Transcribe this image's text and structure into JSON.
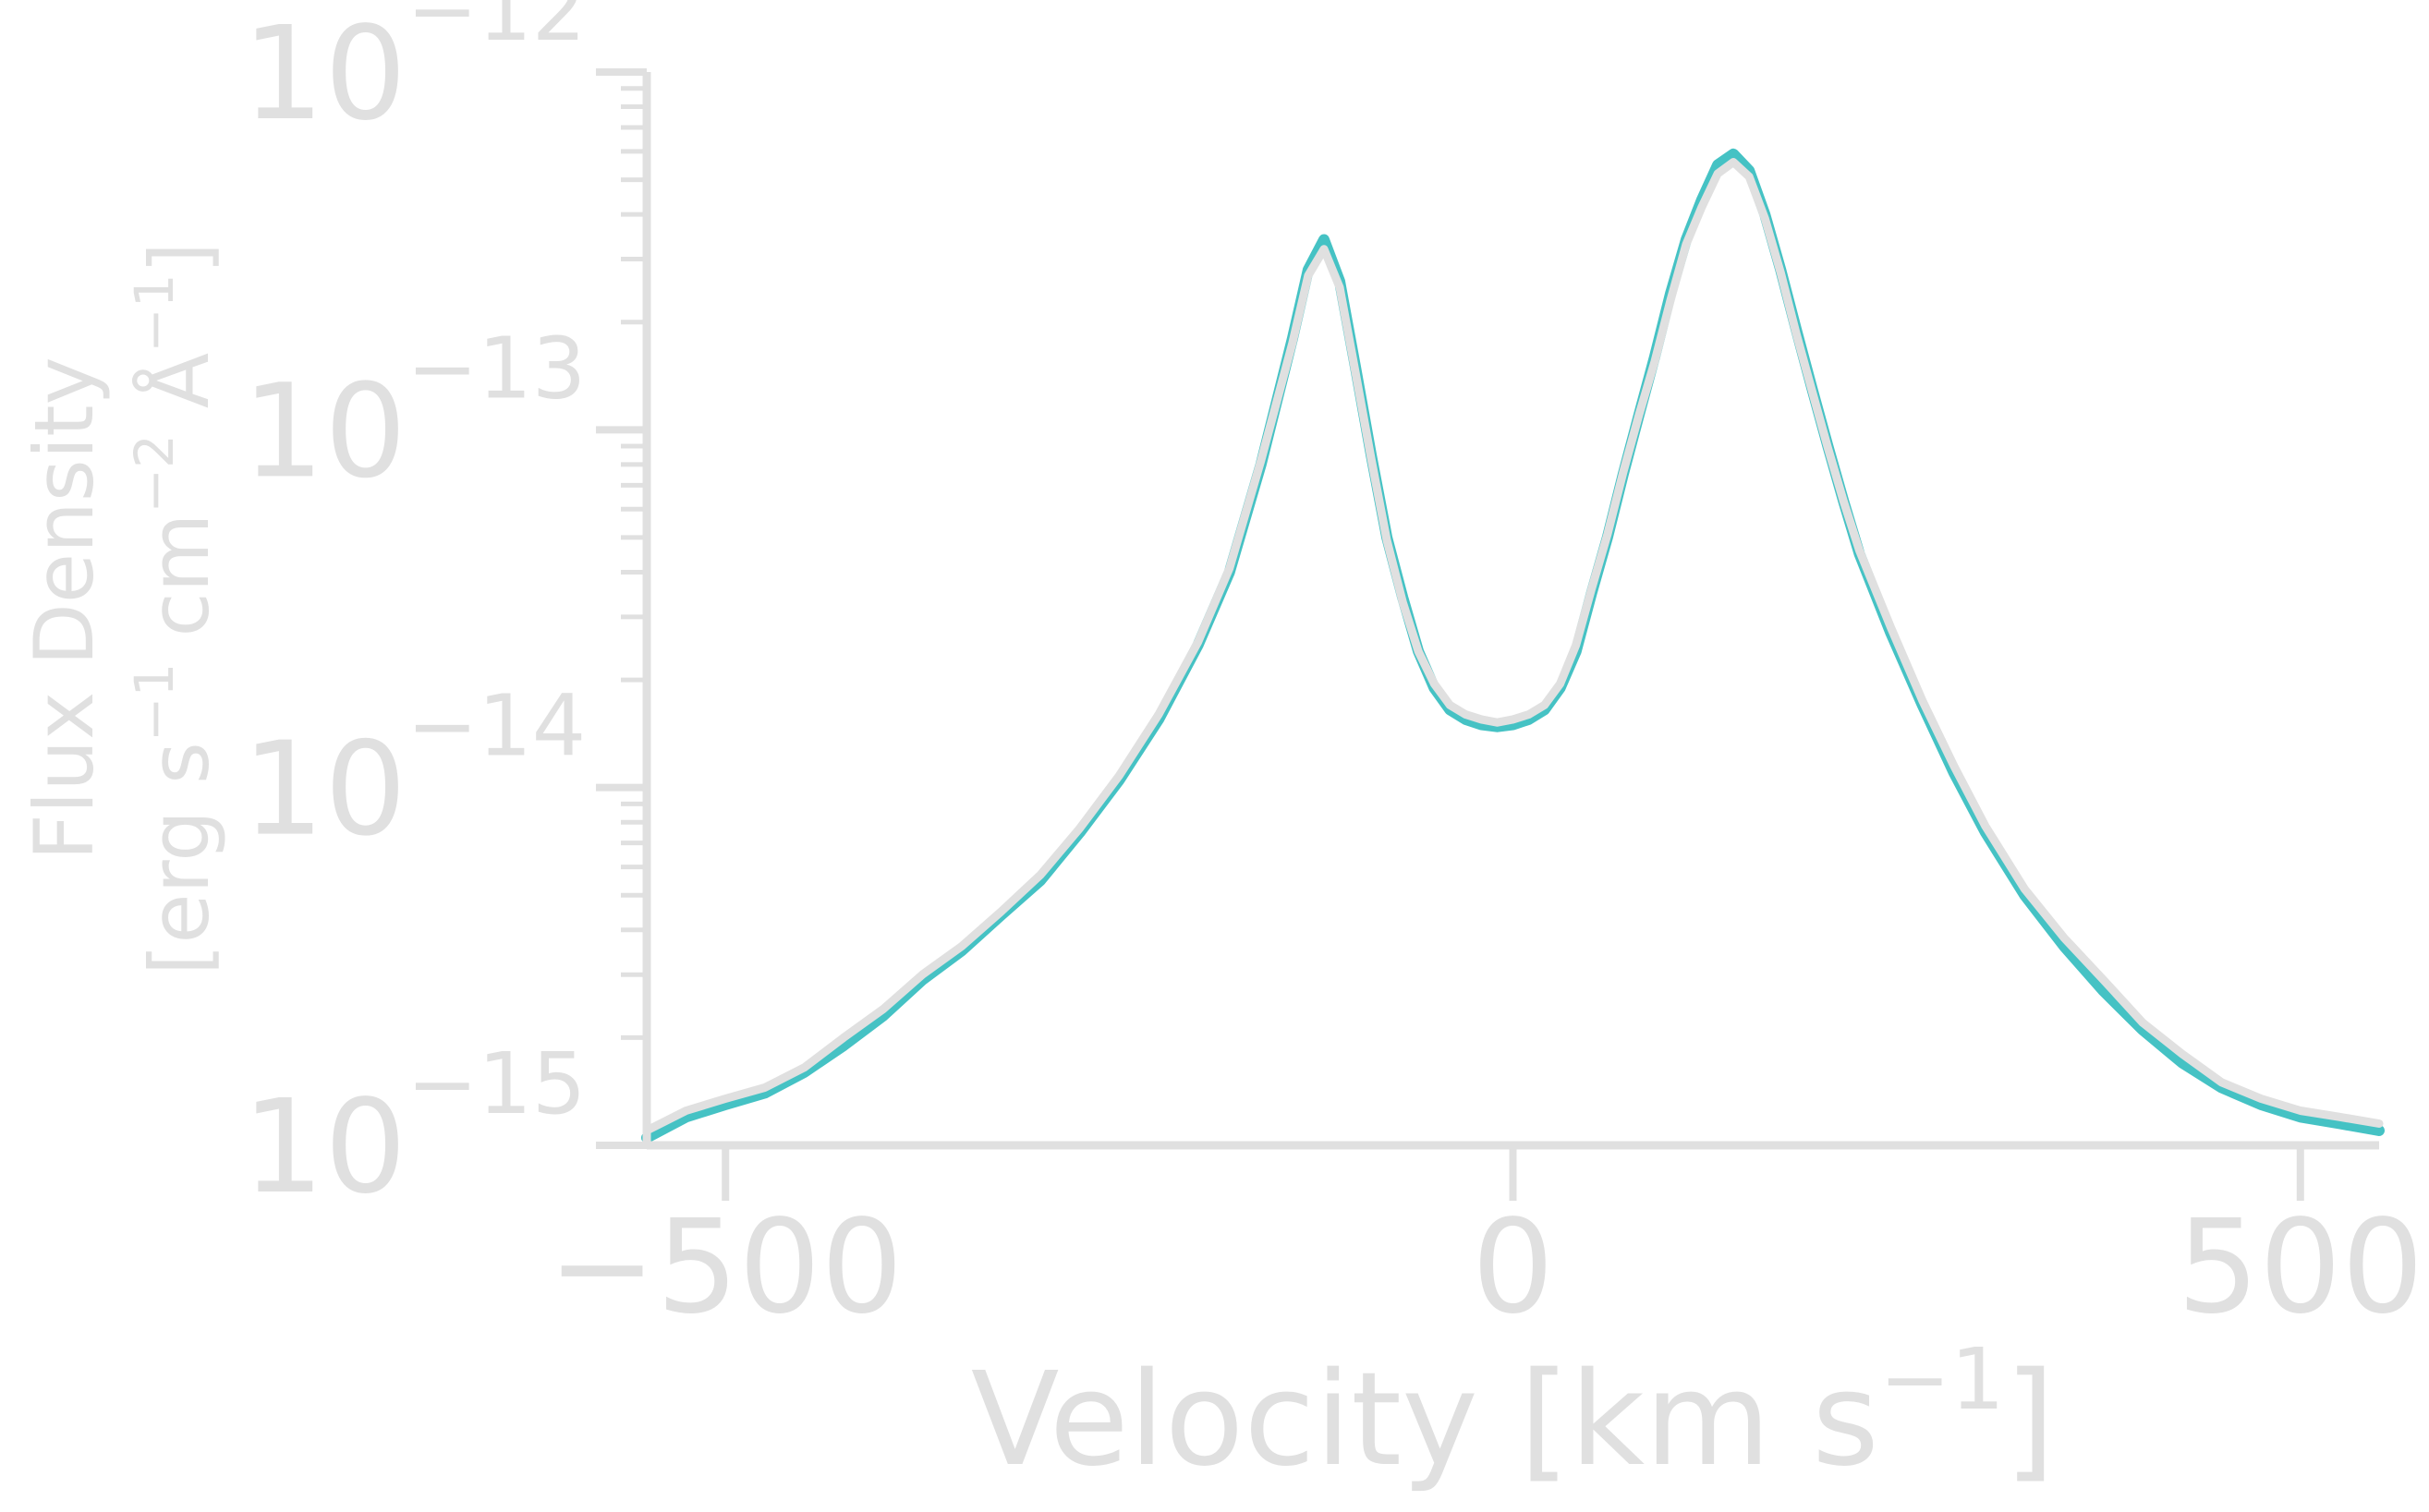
{
  "chart_data": {
    "type": "line",
    "title": "",
    "xlabel_main": "Velocity [km s",
    "xlabel_sup": "−1",
    "xlabel_end": "]",
    "ylabel_line1": "Flux Density",
    "ylabel_line2_parts": [
      "[erg s",
      "−1",
      " cm",
      "−2",
      " Å",
      "−1",
      "]"
    ],
    "xlim": [
      -550,
      550
    ],
    "ylim": [
      1e-15,
      1e-12
    ],
    "yscale": "log",
    "grid": false,
    "x_ticks": [
      {
        "value": -500,
        "label": "−500"
      },
      {
        "value": 0,
        "label": "0"
      },
      {
        "value": 500,
        "label": "500"
      }
    ],
    "y_ticks": [
      {
        "value": 1e-15,
        "base": "10",
        "exp": "−15"
      },
      {
        "value": 1e-14,
        "base": "10",
        "exp": "−14"
      },
      {
        "value": 1e-13,
        "base": "10",
        "exp": "−13"
      },
      {
        "value": 1e-12,
        "base": "10",
        "exp": "−12"
      }
    ],
    "x": [
      -550,
      -525,
      -500,
      -475,
      -450,
      -425,
      -400,
      -375,
      -350,
      -325,
      -300,
      -275,
      -250,
      -225,
      -200,
      -180,
      -160,
      -140,
      -130,
      -120,
      -110,
      -100,
      -90,
      -80,
      -70,
      -60,
      -50,
      -40,
      -30,
      -20,
      -10,
      0,
      10,
      20,
      30,
      40,
      50,
      60,
      70,
      80,
      90,
      100,
      110,
      120,
      130,
      140,
      150,
      160,
      170,
      180,
      190,
      200,
      210,
      220,
      240,
      260,
      280,
      300,
      325,
      350,
      375,
      400,
      425,
      450,
      475,
      500,
      525,
      550
    ],
    "series": [
      {
        "color": "#45c2c4",
        "values": [
          1.05e-15,
          1.2e-15,
          1.3e-15,
          1.4e-15,
          1.6e-15,
          1.9e-15,
          2.3e-15,
          2.9e-15,
          3.5e-15,
          4.4e-15,
          5.5e-15,
          7.5e-15,
          1.05e-14,
          1.55e-14,
          2.5e-14,
          4e-14,
          8e-14,
          1.8e-13,
          2.8e-13,
          3.4e-13,
          2.6e-13,
          1.5e-13,
          8.5e-14,
          5e-14,
          3.4e-14,
          2.4e-14,
          1.9e-14,
          1.65e-14,
          1.55e-14,
          1.5e-14,
          1.48e-14,
          1.5e-14,
          1.55e-14,
          1.65e-14,
          1.9e-14,
          2.4e-14,
          3.5e-14,
          5e-14,
          7.5e-14,
          1.1e-13,
          1.6e-13,
          2.4e-13,
          3.4e-13,
          4.4e-13,
          5.5e-13,
          5.9e-13,
          5.3e-13,
          4e-13,
          2.8e-13,
          1.9e-13,
          1.3e-13,
          9e-14,
          6.3e-14,
          4.5e-14,
          2.7e-14,
          1.7e-14,
          1.1e-14,
          7.5e-15,
          5e-15,
          3.6e-15,
          2.7e-15,
          2.1e-15,
          1.7e-15,
          1.45e-15,
          1.3e-15,
          1.2e-15,
          1.15e-15,
          1.1e-15
        ]
      },
      {
        "color": "#e0e0e0",
        "values": [
          1.1e-15,
          1.25e-15,
          1.35e-15,
          1.45e-15,
          1.65e-15,
          2e-15,
          2.4e-15,
          3e-15,
          3.6e-15,
          4.5e-15,
          5.7e-15,
          7.7e-15,
          1.08e-14,
          1.6e-14,
          2.55e-14,
          4.1e-14,
          8.2e-14,
          1.75e-13,
          2.7e-13,
          3.2e-13,
          2.5e-13,
          1.45e-13,
          8.3e-14,
          4.9e-14,
          3.3e-14,
          2.4e-14,
          1.95e-14,
          1.7e-14,
          1.6e-14,
          1.55e-14,
          1.52e-14,
          1.55e-14,
          1.6e-14,
          1.7e-14,
          1.95e-14,
          2.5e-14,
          3.6e-14,
          5.1e-14,
          7.6e-14,
          1.1e-13,
          1.55e-13,
          2.3e-13,
          3.3e-13,
          4.2e-13,
          5.2e-13,
          5.6e-13,
          5.1e-13,
          3.9e-13,
          2.75e-13,
          1.85e-13,
          1.28e-13,
          8.9e-14,
          6.3e-14,
          4.6e-14,
          2.8e-14,
          1.75e-14,
          1.15e-14,
          7.8e-15,
          5.2e-15,
          3.8e-15,
          2.9e-15,
          2.2e-15,
          1.8e-15,
          1.5e-15,
          1.35e-15,
          1.25e-15,
          1.2e-15,
          1.15e-15
        ]
      }
    ]
  }
}
